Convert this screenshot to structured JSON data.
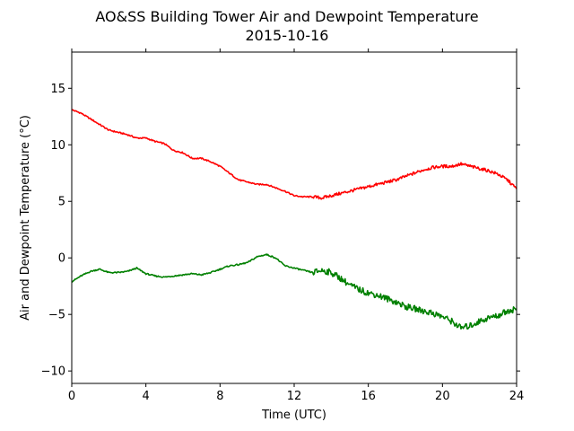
{
  "chart_data": {
    "type": "line",
    "title": "AO&SS Building Tower Air and Dewpoint Temperature",
    "subtitle": "2015-10-16",
    "xlabel": "Time (UTC)",
    "ylabel": "Air and Dewpoint Temperature (°C)",
    "xlim": [
      0,
      24
    ],
    "ylim": [
      -11.1,
      18.2
    ],
    "xticks": [
      0,
      4,
      8,
      12,
      16,
      20,
      24
    ],
    "yticks": [
      -10,
      -5,
      0,
      5,
      10,
      15
    ],
    "ytick_labels": [
      "−10",
      "−5",
      "0",
      "5",
      "10",
      "15"
    ],
    "grid": false,
    "legend": "none",
    "series": [
      {
        "color": "#ff0000",
        "x": [
          0,
          0.5,
          1,
          1.5,
          2,
          2.5,
          3,
          3.5,
          4,
          4.5,
          5,
          5.5,
          6,
          6.5,
          7,
          7.5,
          8,
          8.5,
          9,
          9.5,
          10,
          10.5,
          11,
          11.5,
          12,
          12.5,
          13,
          13.5,
          14,
          14.5,
          15,
          15.5,
          16,
          16.5,
          17,
          17.5,
          18,
          18.5,
          19,
          19.5,
          20,
          20.5,
          21,
          21.5,
          22,
          22.5,
          23,
          23.5,
          24
        ],
        "y": [
          13.1,
          12.8,
          12.3,
          11.8,
          11.3,
          11.1,
          10.9,
          10.6,
          10.6,
          10.3,
          10.1,
          9.5,
          9.3,
          8.8,
          8.8,
          8.5,
          8.1,
          7.5,
          6.9,
          6.7,
          6.5,
          6.5,
          6.2,
          5.9,
          5.5,
          5.4,
          5.4,
          5.3,
          5.5,
          5.7,
          5.9,
          6.1,
          6.3,
          6.5,
          6.7,
          6.9,
          7.2,
          7.5,
          7.8,
          8.0,
          8.1,
          8.1,
          8.3,
          8.1,
          7.9,
          7.7,
          7.4,
          6.9,
          6.1
        ]
      },
      {
        "color": "#008000",
        "x": [
          0,
          0.5,
          1,
          1.5,
          2,
          2.5,
          3,
          3.5,
          4,
          4.5,
          5,
          5.5,
          6,
          6.5,
          7,
          7.5,
          8,
          8.5,
          9,
          9.5,
          10,
          10.5,
          11,
          11.5,
          12,
          12.5,
          13,
          13.5,
          14,
          14.5,
          15,
          15.5,
          16,
          16.5,
          17,
          17.5,
          18,
          18.5,
          19,
          19.5,
          20,
          20.5,
          21,
          21.5,
          22,
          22.5,
          23,
          23.5,
          24
        ],
        "y": [
          -2.1,
          -1.6,
          -1.2,
          -1.0,
          -1.3,
          -1.3,
          -1.2,
          -0.9,
          -1.4,
          -1.6,
          -1.7,
          -1.6,
          -1.5,
          -1.4,
          -1.5,
          -1.3,
          -1.0,
          -0.7,
          -0.6,
          -0.4,
          0.1,
          0.3,
          0.0,
          -0.7,
          -0.9,
          -1.1,
          -1.3,
          -1.1,
          -1.3,
          -1.8,
          -2.4,
          -2.8,
          -3.1,
          -3.3,
          -3.6,
          -3.9,
          -4.3,
          -4.5,
          -4.7,
          -4.9,
          -5.2,
          -5.6,
          -6.2,
          -6.0,
          -5.6,
          -5.3,
          -5.1,
          -4.7,
          -4.5
        ]
      }
    ]
  }
}
